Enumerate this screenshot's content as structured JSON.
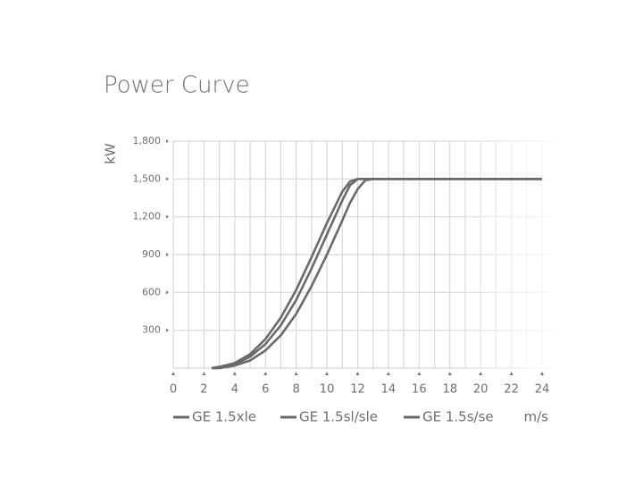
{
  "chart_data": {
    "type": "line",
    "title": "Power Curve",
    "y_label": "kW",
    "x_label": "m/s",
    "x": [
      2.5,
      3,
      4,
      5,
      6,
      7,
      8,
      9,
      10,
      11,
      11.5,
      12,
      12.5,
      13,
      24
    ],
    "series": [
      {
        "name": "GE 1.5xle",
        "color": "#6a6a6a",
        "values": [
          0,
          10,
          40,
          110,
          230,
          400,
          620,
          880,
          1150,
          1400,
          1480,
          1500,
          1500,
          1500,
          1500
        ]
      },
      {
        "name": "GE 1.5sl/sle",
        "color": "#6a6a6a",
        "values": [
          0,
          0,
          30,
          90,
          190,
          340,
          540,
          790,
          1060,
          1330,
          1450,
          1500,
          1500,
          1500,
          1500
        ]
      },
      {
        "name": "GE 1.5s/se",
        "color": "#6a6a6a",
        "values": [
          0,
          0,
          20,
          60,
          140,
          260,
          430,
          650,
          900,
          1170,
          1310,
          1420,
          1490,
          1500,
          1500
        ]
      }
    ],
    "xlim": [
      0,
      24
    ],
    "xticks": [
      0,
      2,
      4,
      6,
      8,
      10,
      12,
      14,
      16,
      18,
      20,
      22,
      24
    ],
    "ylim": [
      0,
      1800
    ],
    "yticks": [
      300,
      600,
      900,
      {
        "value": 1200,
        "label": "1,200"
      },
      {
        "value": 1500,
        "label": "1,500"
      },
      {
        "value": 1800,
        "label": "1,800"
      }
    ],
    "grid": true,
    "minor_grid": true
  }
}
